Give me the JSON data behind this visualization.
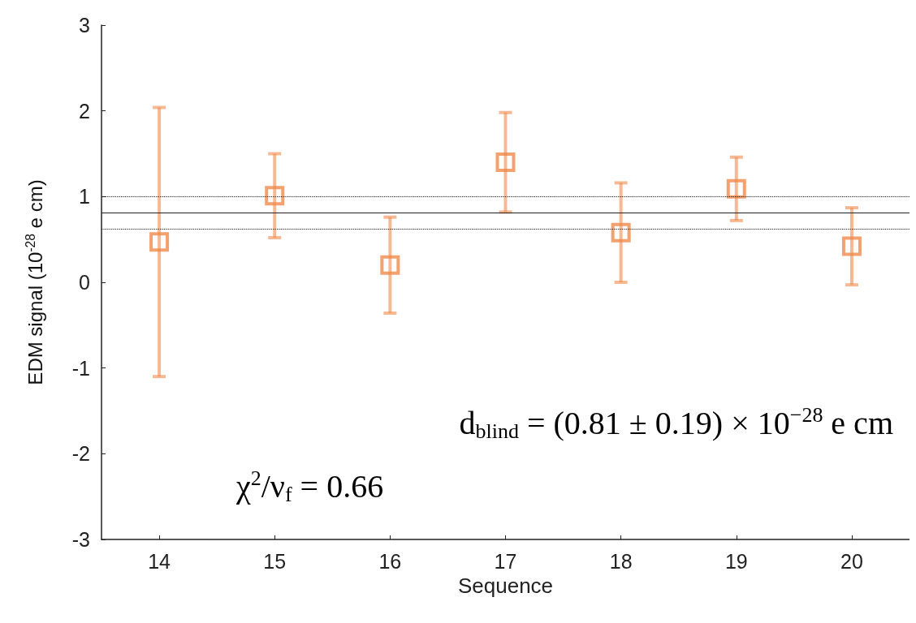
{
  "chart_data": {
    "type": "scatter",
    "xlabel": "Sequence",
    "ylabel": "EDM signal (10$^{-28}$ e cm)",
    "x": [
      14,
      15,
      16,
      17,
      18,
      19,
      20
    ],
    "values": [
      0.47,
      1.01,
      0.2,
      1.4,
      0.58,
      1.09,
      0.42
    ],
    "errors": [
      1.57,
      0.49,
      0.56,
      0.58,
      0.58,
      0.37,
      0.45
    ],
    "color": "#f08a4b",
    "marker": "square",
    "xlim": [
      13.5,
      20.5
    ],
    "xticks": [
      14,
      15,
      16,
      17,
      18,
      19,
      20
    ],
    "ylim": [
      -3,
      3
    ],
    "yticks": [
      -3,
      -2,
      -1,
      0,
      1,
      2,
      3
    ],
    "grid": false,
    "ref_lines": [
      {
        "axis": "y",
        "value": 0.81,
        "line_style": "solid",
        "color": "#222222"
      },
      {
        "axis": "y",
        "value": 1.0,
        "line_style": "dotted",
        "color": "#222222"
      },
      {
        "axis": "y",
        "value": 0.62,
        "line_style": "dotted",
        "color": "#222222"
      }
    ],
    "annotations": [
      "d$_{blind}$ = (0.81 ± 0.19) × 10$^{−28}$ e cm",
      "χ$^{2}$/ν$_{f}$ = 0.66"
    ]
  }
}
